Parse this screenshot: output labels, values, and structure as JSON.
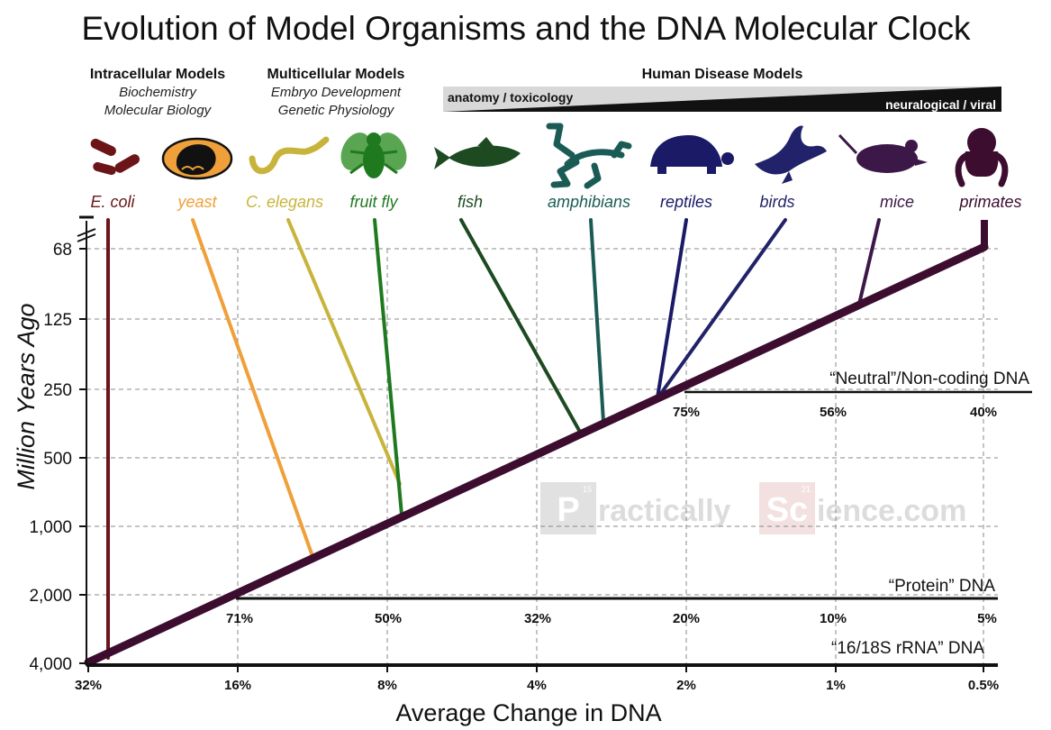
{
  "chart_data": {
    "type": "line",
    "title": "Evolution of Model Organisms and the DNA Molecular Clock",
    "xlabel": "Average Change in DNA",
    "ylabel": "Million Years Ago",
    "y_ticks": [
      "68",
      "125",
      "250",
      "500",
      "1,000",
      "2,000",
      "4,000"
    ],
    "x_ticks": [
      "32%",
      "16%",
      "8%",
      "4%",
      "2%",
      "1%",
      "0.5%"
    ],
    "x_scale_rows": [
      {
        "label": "“Neutral”/Non-coding DNA",
        "ticks": [
          "75%",
          "56%",
          "40%"
        ]
      },
      {
        "label": "“Protein” DNA",
        "ticks": [
          "71%",
          "50%",
          "32%",
          "20%",
          "10%",
          "5%"
        ]
      },
      {
        "label": "“16/18S rRNA” DNA",
        "ticks": []
      }
    ],
    "groups": [
      {
        "name": "Intracellular Models",
        "subtitle": [
          "Biochemistry",
          "Molecular Biology"
        ]
      },
      {
        "name": "Multicellular Models",
        "subtitle": [
          "Embryo Development",
          "Genetic Physiology"
        ]
      },
      {
        "name": "Human Disease Models",
        "scale_low": "anatomy / toxicology",
        "scale_high": "neuralogical / viral"
      }
    ],
    "organisms": [
      {
        "name": "E. coli",
        "color": "#6b1519",
        "icon": "bacteria-icon",
        "diverged_mya": 4000
      },
      {
        "name": "yeast",
        "color": "#f0a03a",
        "icon": "yeast-icon",
        "diverged_mya": 1500
      },
      {
        "name": "C. elegans",
        "color": "#c8b43c",
        "icon": "worm-icon",
        "diverged_mya": 800
      },
      {
        "name": "fruit fly",
        "color": "#1f7a1f",
        "icon": "fly-icon",
        "diverged_mya": 850
      },
      {
        "name": "fish",
        "color": "#1e4a22",
        "icon": "fish-icon",
        "diverged_mya": 420
      },
      {
        "name": "amphibians",
        "color": "#1a5c55",
        "icon": "frog-icon",
        "diverged_mya": 380
      },
      {
        "name": "reptiles",
        "color": "#1a1a66",
        "icon": "turtle-icon",
        "diverged_mya": 300
      },
      {
        "name": "birds",
        "color": "#22226a",
        "icon": "bird-icon",
        "diverged_mya": 300
      },
      {
        "name": "mice",
        "color": "#3c1848",
        "icon": "mouse-icon",
        "diverged_mya": 90
      },
      {
        "name": "primates",
        "color": "#3c0d2f",
        "icon": "primate-icon",
        "diverged_mya": 68
      }
    ],
    "clock_line": {
      "from": {
        "x": "32%",
        "mya": 4000
      },
      "to": {
        "x": "0.5%",
        "mya": 68
      }
    },
    "watermark": "PracticallyScience.com"
  }
}
